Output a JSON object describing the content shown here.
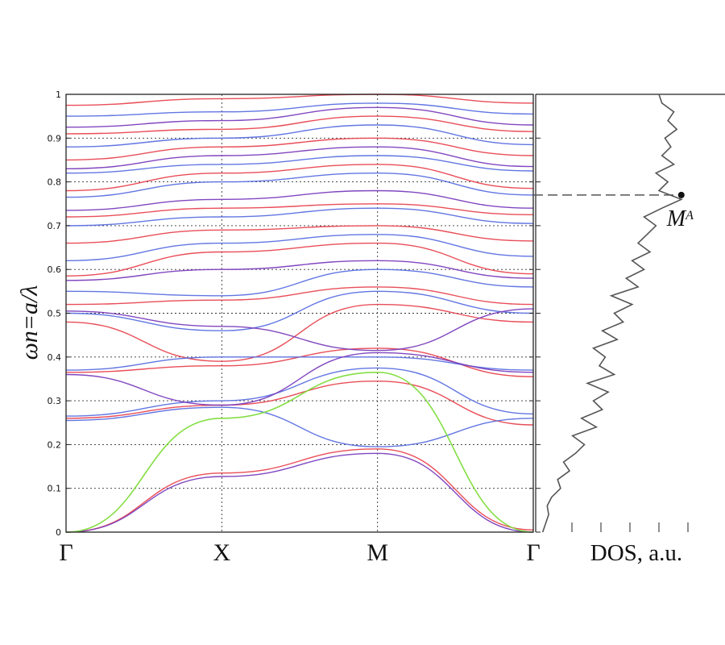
{
  "chart_data": [
    {
      "type": "line",
      "panel": "band-structure",
      "title": "",
      "xlabel": "",
      "ylabel": "ωn=a/λ",
      "ylim": [
        0,
        1
      ],
      "grid": true,
      "x_ticks": [
        "Γ",
        "X",
        "M",
        "Γ"
      ],
      "y_ticks": [
        "0",
        "0.1",
        "0.2",
        "0.3",
        "0.4",
        "0.5",
        "0.6",
        "0.7",
        "0.8",
        "0.9",
        "1"
      ],
      "colors": {
        "red": "#e8454f",
        "blue": "#5a6fe0",
        "purple": "#7a3dbd",
        "green": "#7ddc3a"
      },
      "series": [
        {
          "color": "green",
          "x": [
            0,
            1,
            2,
            3
          ],
          "y": [
            0.0,
            0.26,
            0.365,
            0.0
          ]
        },
        {
          "color": "purple",
          "x": [
            0,
            1,
            2,
            3
          ],
          "y": [
            0.0,
            0.127,
            0.18,
            0.0
          ]
        },
        {
          "color": "red",
          "x": [
            0,
            1,
            2,
            3
          ],
          "y": [
            0.0,
            0.135,
            0.19,
            0.005
          ]
        },
        {
          "color": "blue",
          "x": [
            0,
            1,
            2,
            3
          ],
          "y": [
            0.255,
            0.285,
            0.195,
            0.26
          ]
        },
        {
          "color": "red",
          "x": [
            0,
            1,
            2,
            3
          ],
          "y": [
            0.26,
            0.29,
            0.345,
            0.245
          ]
        },
        {
          "color": "blue",
          "x": [
            0,
            1,
            2,
            3
          ],
          "y": [
            0.265,
            0.3,
            0.375,
            0.27
          ]
        },
        {
          "color": "purple",
          "x": [
            0,
            1,
            2,
            3
          ],
          "y": [
            0.36,
            0.29,
            0.41,
            0.365
          ]
        },
        {
          "color": "red",
          "x": [
            0,
            1,
            2,
            3
          ],
          "y": [
            0.365,
            0.38,
            0.42,
            0.355
          ]
        },
        {
          "color": "blue",
          "x": [
            0,
            1,
            2,
            3
          ],
          "y": [
            0.37,
            0.4,
            0.4,
            0.37
          ]
        },
        {
          "color": "red",
          "x": [
            0,
            1,
            2,
            3
          ],
          "y": [
            0.48,
            0.39,
            0.52,
            0.48
          ]
        },
        {
          "color": "blue",
          "x": [
            0,
            1,
            2,
            3
          ],
          "y": [
            0.5,
            0.46,
            0.55,
            0.5
          ]
        },
        {
          "color": "purple",
          "x": [
            0,
            1,
            2,
            3
          ],
          "y": [
            0.505,
            0.47,
            0.415,
            0.51
          ]
        },
        {
          "color": "red",
          "x": [
            0,
            1,
            2,
            3
          ],
          "y": [
            0.52,
            0.53,
            0.56,
            0.52
          ]
        },
        {
          "color": "blue",
          "x": [
            0,
            1,
            2,
            3
          ],
          "y": [
            0.55,
            0.54,
            0.6,
            0.56
          ]
        },
        {
          "color": "purple",
          "x": [
            0,
            1,
            2,
            3
          ],
          "y": [
            0.575,
            0.6,
            0.62,
            0.58
          ]
        },
        {
          "color": "red",
          "x": [
            0,
            1,
            2,
            3
          ],
          "y": [
            0.585,
            0.64,
            0.66,
            0.59
          ]
        },
        {
          "color": "blue",
          "x": [
            0,
            1,
            2,
            3
          ],
          "y": [
            0.62,
            0.66,
            0.68,
            0.63
          ]
        },
        {
          "color": "red",
          "x": [
            0,
            1,
            2,
            3
          ],
          "y": [
            0.66,
            0.69,
            0.7,
            0.665
          ]
        },
        {
          "color": "blue",
          "x": [
            0,
            1,
            2,
            3
          ],
          "y": [
            0.7,
            0.72,
            0.74,
            0.705
          ]
        },
        {
          "color": "red",
          "x": [
            0,
            1,
            2,
            3
          ],
          "y": [
            0.72,
            0.74,
            0.75,
            0.725
          ]
        },
        {
          "color": "purple",
          "x": [
            0,
            1,
            2,
            3
          ],
          "y": [
            0.735,
            0.76,
            0.78,
            0.74
          ]
        },
        {
          "color": "blue",
          "x": [
            0,
            1,
            2,
            3
          ],
          "y": [
            0.765,
            0.8,
            0.82,
            0.77
          ]
        },
        {
          "color": "red",
          "x": [
            0,
            1,
            2,
            3
          ],
          "y": [
            0.78,
            0.82,
            0.84,
            0.785
          ]
        },
        {
          "color": "blue",
          "x": [
            0,
            1,
            2,
            3
          ],
          "y": [
            0.82,
            0.84,
            0.86,
            0.825
          ]
        },
        {
          "color": "purple",
          "x": [
            0,
            1,
            2,
            3
          ],
          "y": [
            0.83,
            0.86,
            0.88,
            0.835
          ]
        },
        {
          "color": "red",
          "x": [
            0,
            1,
            2,
            3
          ],
          "y": [
            0.85,
            0.88,
            0.9,
            0.86
          ]
        },
        {
          "color": "blue",
          "x": [
            0,
            1,
            2,
            3
          ],
          "y": [
            0.88,
            0.9,
            0.93,
            0.885
          ]
        },
        {
          "color": "red",
          "x": [
            0,
            1,
            2,
            3
          ],
          "y": [
            0.91,
            0.92,
            0.95,
            0.915
          ]
        },
        {
          "color": "purple",
          "x": [
            0,
            1,
            2,
            3
          ],
          "y": [
            0.925,
            0.94,
            0.97,
            0.93
          ]
        },
        {
          "color": "blue",
          "x": [
            0,
            1,
            2,
            3
          ],
          "y": [
            0.95,
            0.96,
            0.98,
            0.955
          ]
        },
        {
          "color": "red",
          "x": [
            0,
            1,
            2,
            3
          ],
          "y": [
            0.975,
            0.99,
            1.0,
            0.98
          ]
        }
      ]
    },
    {
      "type": "line",
      "panel": "density-of-states",
      "title": "",
      "xlabel": "DOS, a.u.",
      "ylabel": "",
      "ylim": [
        0,
        1
      ],
      "color": "#555555",
      "y": [
        0.0,
        0.02,
        0.04,
        0.06,
        0.08,
        0.1,
        0.12,
        0.14,
        0.16,
        0.18,
        0.2,
        0.22,
        0.24,
        0.26,
        0.28,
        0.3,
        0.32,
        0.34,
        0.36,
        0.38,
        0.4,
        0.42,
        0.44,
        0.46,
        0.48,
        0.5,
        0.52,
        0.54,
        0.56,
        0.58,
        0.6,
        0.62,
        0.64,
        0.66,
        0.68,
        0.7,
        0.72,
        0.74,
        0.76,
        0.78,
        0.8,
        0.82,
        0.84,
        0.86,
        0.88,
        0.9,
        0.92,
        0.94,
        0.96,
        0.98,
        1.0
      ],
      "dos": [
        0.02,
        0.04,
        0.06,
        0.05,
        0.08,
        0.14,
        0.12,
        0.2,
        0.16,
        0.24,
        0.3,
        0.22,
        0.38,
        0.28,
        0.42,
        0.36,
        0.46,
        0.32,
        0.5,
        0.4,
        0.44,
        0.36,
        0.52,
        0.42,
        0.56,
        0.5,
        0.62,
        0.48,
        0.66,
        0.58,
        0.7,
        0.62,
        0.74,
        0.66,
        0.72,
        0.78,
        0.7,
        0.82,
        0.95,
        0.8,
        0.86,
        0.78,
        0.9,
        0.82,
        0.88,
        0.84,
        0.92,
        0.86,
        0.9,
        0.82,
        0.8
      ],
      "reference_line_y": 0.77,
      "annotation": {
        "label": "M",
        "superscript": "A",
        "y": 0.77,
        "dos": 0.95
      }
    }
  ]
}
